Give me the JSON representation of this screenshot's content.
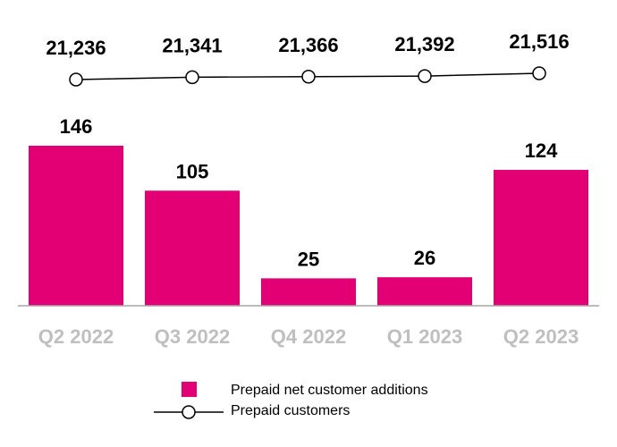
{
  "chart_data": [
    {
      "type": "bar",
      "categories": [
        "Q2 2022",
        "Q3 2022",
        "Q4 2022",
        "Q1 2023",
        "Q2 2023"
      ],
      "series": [
        {
          "name": "Prepaid net customer additions",
          "values": [
            146,
            105,
            25,
            26,
            124
          ],
          "color": "#e20074"
        }
      ],
      "data_labels": [
        "146",
        "105",
        "25",
        "26",
        "124"
      ]
    },
    {
      "type": "line",
      "categories": [
        "Q2 2022",
        "Q3 2022",
        "Q4 2022",
        "Q1 2023",
        "Q2 2023"
      ],
      "series": [
        {
          "name": "Prepaid customers",
          "values": [
            21236,
            21341,
            21366,
            21392,
            21516
          ],
          "color": "#000000"
        }
      ],
      "data_labels": [
        "21,236",
        "21,341",
        "21,366",
        "21,392",
        "21,516"
      ]
    }
  ],
  "legend": {
    "placement": "bottom",
    "items": [
      "Prepaid net customer additions",
      "Prepaid customers"
    ]
  },
  "colors": {
    "bar": "#e20074",
    "axis_labels": "#bfbfbf",
    "axis": "#a6a6a6"
  }
}
